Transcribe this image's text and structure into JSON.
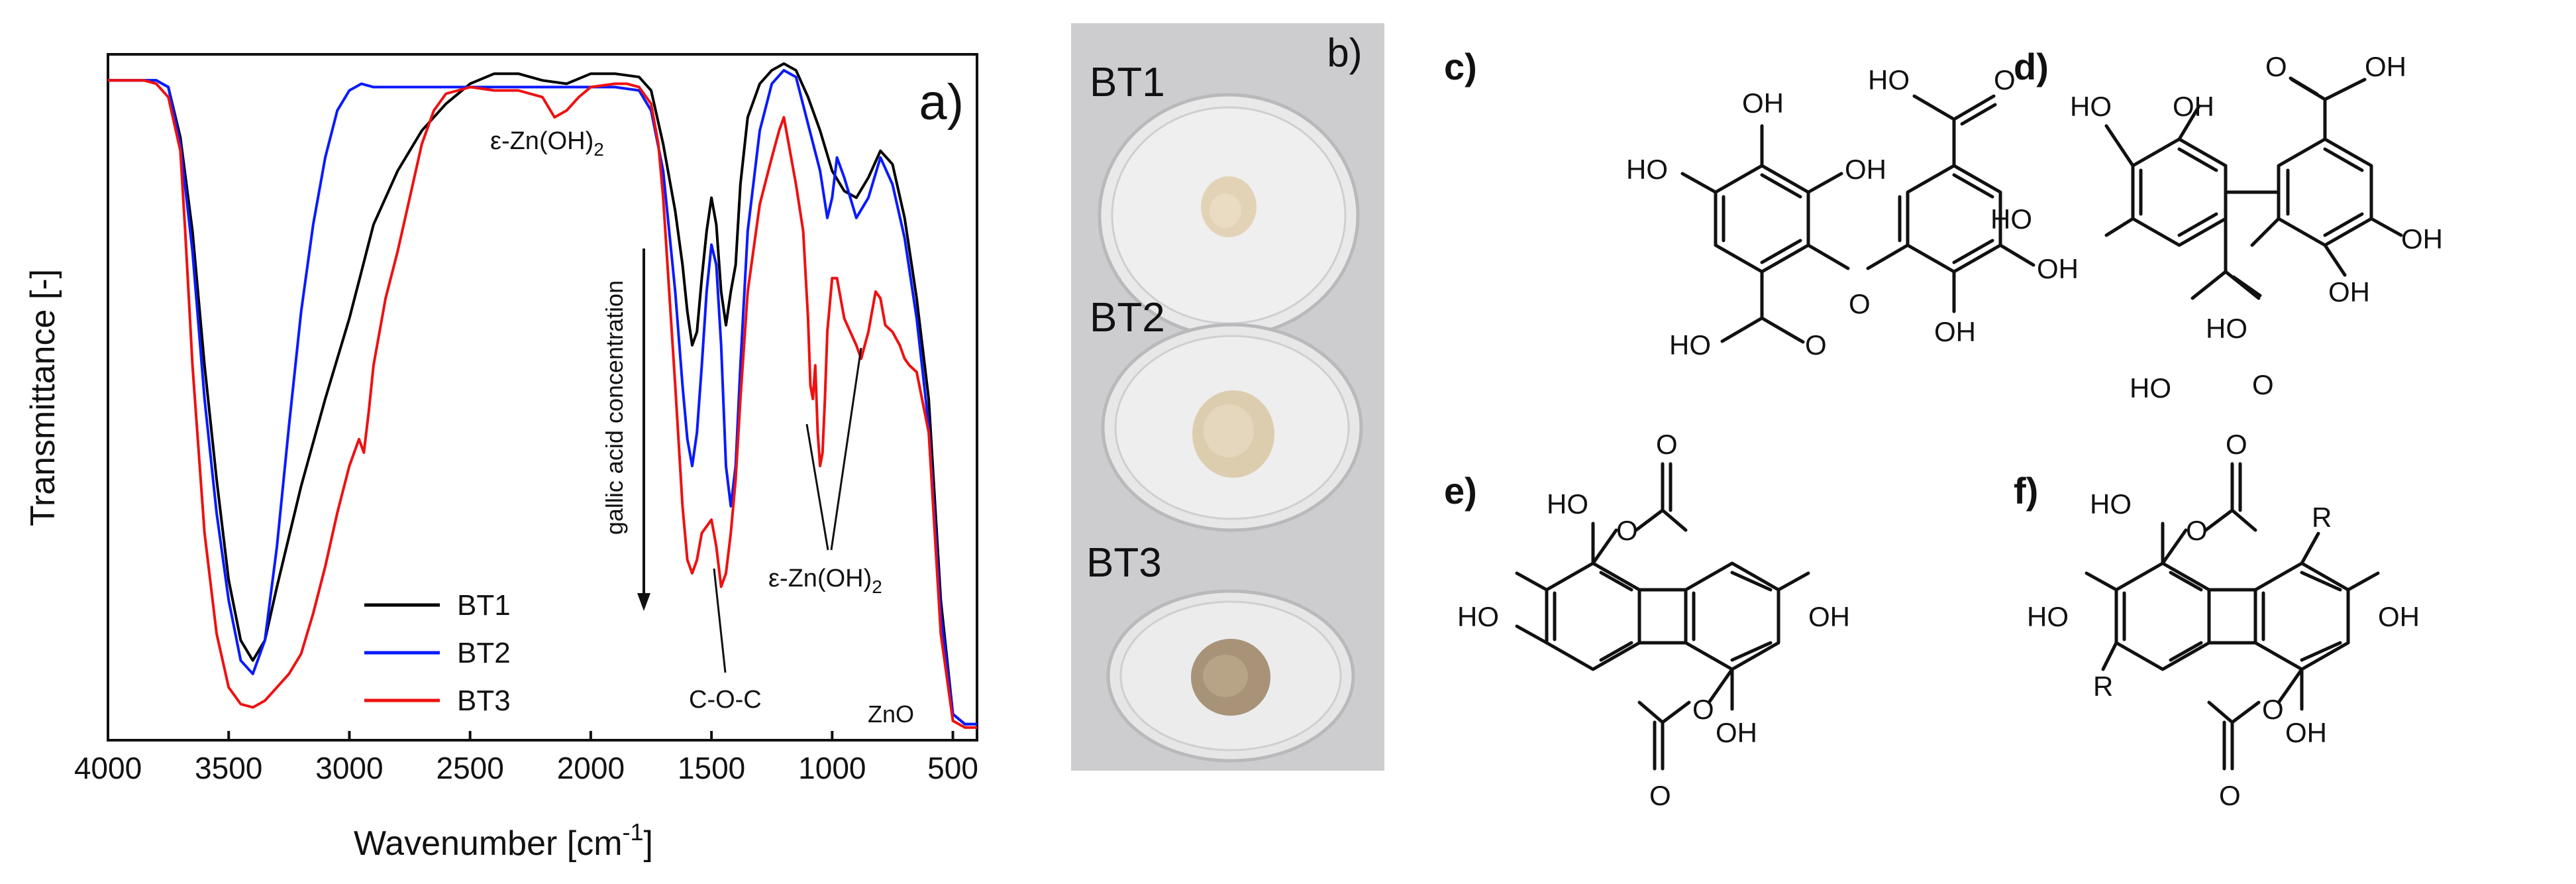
{
  "panels": {
    "a": "a)",
    "b": "b)",
    "c": "c)",
    "d": "d)",
    "e": "e)",
    "f": "f)"
  },
  "chart_data": {
    "type": "line",
    "title": "",
    "xlabel": "Wavenumber [cm",
    "xlabel_sup": "-1",
    "xlabel_end": "]",
    "ylabel": "Transmittance [-]",
    "xlim": [
      4000,
      400
    ],
    "x_reversed": true,
    "ylim": [
      0,
      1
    ],
    "xticks": [
      4000,
      3500,
      3000,
      2500,
      2000,
      1500,
      1000,
      500
    ],
    "xtick_labels": [
      "4000",
      "3500",
      "3000",
      "2500",
      "2000",
      "1500",
      "1000",
      "500"
    ],
    "grid": false,
    "legend_position": "bottom-left",
    "annotations": {
      "zn_oh_top": "ε-Zn(OH)",
      "zn_oh_mid": "ε-Zn(OH)",
      "subscript": "2",
      "coc": "C-O-C",
      "zno": "ZnO",
      "gallic": "gallic acid concentration"
    },
    "series": [
      {
        "name": "BT1",
        "color": "#000000",
        "x": [
          4000,
          3800,
          3750,
          3700,
          3650,
          3600,
          3550,
          3500,
          3450,
          3400,
          3350,
          3300,
          3200,
          3100,
          3000,
          2950,
          2900,
          2800,
          2700,
          2600,
          2500,
          2400,
          2300,
          2200,
          2100,
          2000,
          1900,
          1800,
          1750,
          1700,
          1650,
          1620,
          1600,
          1580,
          1560,
          1540,
          1520,
          1500,
          1480,
          1460,
          1440,
          1420,
          1400,
          1380,
          1350,
          1300,
          1250,
          1200,
          1150,
          1100,
          1050,
          1000,
          950,
          900,
          850,
          800,
          750,
          700,
          650,
          600,
          550,
          500,
          450,
          400
        ],
        "y": [
          0.975,
          0.975,
          0.965,
          0.89,
          0.75,
          0.55,
          0.38,
          0.23,
          0.14,
          0.11,
          0.14,
          0.22,
          0.37,
          0.5,
          0.62,
          0.69,
          0.76,
          0.84,
          0.9,
          0.94,
          0.97,
          0.985,
          0.985,
          0.975,
          0.97,
          0.985,
          0.985,
          0.98,
          0.96,
          0.88,
          0.78,
          0.7,
          0.63,
          0.58,
          0.6,
          0.68,
          0.75,
          0.8,
          0.76,
          0.66,
          0.61,
          0.66,
          0.7,
          0.82,
          0.92,
          0.97,
          0.99,
          1.0,
          0.99,
          0.95,
          0.9,
          0.84,
          0.81,
          0.8,
          0.83,
          0.87,
          0.85,
          0.77,
          0.65,
          0.5,
          0.2,
          0.03,
          0.015,
          0.015
        ]
      },
      {
        "name": "BT2",
        "color": "#0a1aff",
        "x": [
          4000,
          3800,
          3750,
          3700,
          3650,
          3600,
          3550,
          3500,
          3450,
          3400,
          3350,
          3300,
          3250,
          3200,
          3150,
          3100,
          3050,
          3000,
          2950,
          2900,
          2800,
          2600,
          2400,
          2200,
          2000,
          1900,
          1800,
          1750,
          1700,
          1650,
          1620,
          1600,
          1580,
          1560,
          1540,
          1520,
          1500,
          1480,
          1460,
          1440,
          1420,
          1400,
          1380,
          1350,
          1300,
          1250,
          1200,
          1150,
          1100,
          1050,
          1020,
          1000,
          980,
          950,
          900,
          850,
          800,
          750,
          700,
          650,
          600,
          550,
          500,
          450,
          400
        ],
        "y": [
          0.975,
          0.975,
          0.965,
          0.88,
          0.72,
          0.5,
          0.33,
          0.2,
          0.11,
          0.09,
          0.14,
          0.28,
          0.46,
          0.63,
          0.76,
          0.86,
          0.93,
          0.96,
          0.97,
          0.965,
          0.965,
          0.965,
          0.965,
          0.965,
          0.965,
          0.965,
          0.96,
          0.93,
          0.84,
          0.66,
          0.52,
          0.44,
          0.4,
          0.45,
          0.55,
          0.66,
          0.73,
          0.7,
          0.58,
          0.4,
          0.34,
          0.4,
          0.55,
          0.75,
          0.9,
          0.97,
          0.99,
          0.98,
          0.91,
          0.84,
          0.77,
          0.8,
          0.86,
          0.83,
          0.77,
          0.8,
          0.86,
          0.82,
          0.74,
          0.62,
          0.46,
          0.18,
          0.03,
          0.015,
          0.015
        ]
      },
      {
        "name": "BT3",
        "color": "#ee1111",
        "x": [
          4000,
          3850,
          3800,
          3750,
          3700,
          3680,
          3650,
          3600,
          3550,
          3500,
          3450,
          3400,
          3350,
          3300,
          3250,
          3200,
          3150,
          3100,
          3050,
          3000,
          2960,
          2940,
          2920,
          2900,
          2850,
          2800,
          2750,
          2700,
          2650,
          2600,
          2550,
          2500,
          2400,
          2300,
          2200,
          2150,
          2100,
          2050,
          2000,
          1900,
          1850,
          1800,
          1750,
          1720,
          1700,
          1650,
          1620,
          1600,
          1580,
          1560,
          1540,
          1520,
          1500,
          1480,
          1460,
          1440,
          1420,
          1400,
          1380,
          1350,
          1300,
          1250,
          1220,
          1200,
          1180,
          1150,
          1120,
          1100,
          1090,
          1080,
          1070,
          1060,
          1050,
          1040,
          1030,
          1020,
          1000,
          980,
          950,
          900,
          880,
          850,
          820,
          800,
          780,
          750,
          720,
          700,
          680,
          650,
          600,
          550,
          500,
          450,
          400
        ],
        "y": [
          0.975,
          0.975,
          0.97,
          0.95,
          0.87,
          0.75,
          0.55,
          0.3,
          0.15,
          0.07,
          0.045,
          0.04,
          0.05,
          0.07,
          0.09,
          0.12,
          0.18,
          0.25,
          0.33,
          0.4,
          0.44,
          0.42,
          0.48,
          0.55,
          0.65,
          0.72,
          0.8,
          0.88,
          0.93,
          0.955,
          0.96,
          0.965,
          0.96,
          0.96,
          0.95,
          0.92,
          0.93,
          0.95,
          0.965,
          0.97,
          0.97,
          0.965,
          0.94,
          0.88,
          0.8,
          0.52,
          0.34,
          0.26,
          0.24,
          0.26,
          0.3,
          0.31,
          0.32,
          0.28,
          0.22,
          0.24,
          0.3,
          0.38,
          0.5,
          0.66,
          0.79,
          0.86,
          0.9,
          0.92,
          0.88,
          0.82,
          0.75,
          0.62,
          0.52,
          0.5,
          0.55,
          0.45,
          0.4,
          0.42,
          0.5,
          0.6,
          0.68,
          0.68,
          0.62,
          0.58,
          0.56,
          0.6,
          0.66,
          0.65,
          0.61,
          0.6,
          0.58,
          0.56,
          0.55,
          0.54,
          0.45,
          0.15,
          0.02,
          0.01,
          0.01
        ]
      }
    ]
  },
  "photo": {
    "samples": [
      {
        "label": "BT1",
        "powder_color": "#e3d3b6"
      },
      {
        "label": "BT2",
        "powder_color": "#ddcdaf"
      },
      {
        "label": "BT3",
        "powder_color": "#a89378"
      }
    ],
    "background": "#ccccce"
  },
  "atoms": {
    "OH": "OH",
    "HO": "HO",
    "O": "O",
    "R": "R"
  }
}
